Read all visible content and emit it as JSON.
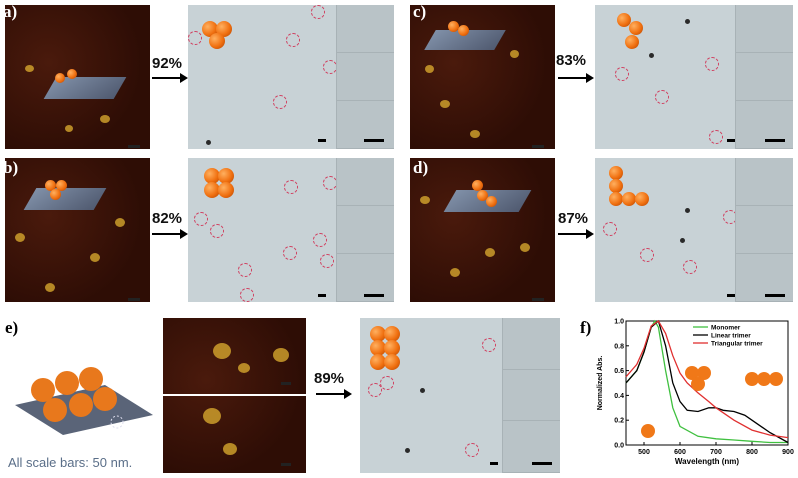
{
  "panels": {
    "a": {
      "label": "a)",
      "yield": "92%"
    },
    "b": {
      "label": "b)",
      "yield": "82%"
    },
    "c": {
      "label": "c)",
      "yield": "83%"
    },
    "d": {
      "label": "d)",
      "yield": "87%"
    },
    "e": {
      "label": "e)",
      "yield": "89%"
    },
    "f": {
      "label": "f)"
    }
  },
  "scale_note": "All scale bars: 50 nm.",
  "chart_data": {
    "type": "line",
    "xlabel": "Wavelength (nm)",
    "ylabel": "Normalized Abs.",
    "xlim": [
      450,
      900
    ],
    "ylim": [
      0.0,
      1.0
    ],
    "xticks": [
      500,
      600,
      700,
      800,
      900
    ],
    "yticks": [
      "0.0",
      "0.2",
      "0.4",
      "0.6",
      "0.8",
      "1.0"
    ],
    "legend_position": "top-right",
    "series": [
      {
        "name": "Monomer",
        "color": "#40c040",
        "x": [
          450,
          480,
          500,
          520,
          530,
          540,
          560,
          580,
          600,
          650,
          700,
          750,
          800,
          850,
          900
        ],
        "y": [
          0.5,
          0.6,
          0.75,
          0.95,
          1.0,
          0.95,
          0.6,
          0.3,
          0.15,
          0.07,
          0.05,
          0.04,
          0.03,
          0.02,
          0.02
        ]
      },
      {
        "name": "Linear trimer",
        "color": "#000000",
        "x": [
          450,
          480,
          500,
          520,
          540,
          560,
          580,
          600,
          620,
          650,
          680,
          700,
          720,
          750,
          780,
          800,
          850,
          900
        ],
        "y": [
          0.5,
          0.6,
          0.75,
          0.95,
          1.0,
          0.8,
          0.5,
          0.35,
          0.28,
          0.27,
          0.3,
          0.3,
          0.28,
          0.27,
          0.24,
          0.2,
          0.1,
          0.02
        ]
      },
      {
        "name": "Triangular trimer",
        "color": "#e03030",
        "x": [
          450,
          480,
          500,
          520,
          540,
          560,
          580,
          600,
          620,
          650,
          680,
          700,
          750,
          800,
          850,
          900
        ],
        "y": [
          0.55,
          0.65,
          0.78,
          0.96,
          1.0,
          0.9,
          0.72,
          0.58,
          0.5,
          0.42,
          0.35,
          0.3,
          0.2,
          0.12,
          0.08,
          0.06
        ]
      }
    ]
  }
}
